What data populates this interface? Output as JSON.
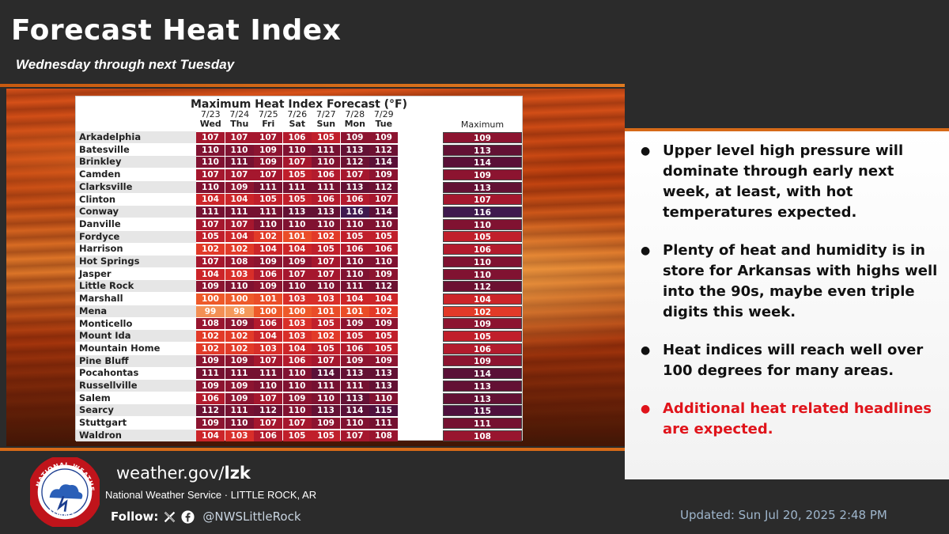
{
  "header": {
    "title": "Forecast Heat Index",
    "subtitle": "Wednesday through next Tuesday"
  },
  "table": {
    "title": "Maximum Heat Index Forecast (°F)",
    "dates": [
      "7/23",
      "7/24",
      "7/25",
      "7/26",
      "7/27",
      "7/28",
      "7/29"
    ],
    "days": [
      "Wed",
      "Thu",
      "Fri",
      "Sat",
      "Sun",
      "Mon",
      "Tue"
    ],
    "max_header": "Maximum",
    "rows": [
      {
        "city": "Arkadelphia",
        "values": [
          107,
          107,
          107,
          106,
          105,
          109,
          109
        ],
        "max": 109
      },
      {
        "city": "Batesville",
        "values": [
          110,
          110,
          109,
          110,
          111,
          113,
          112
        ],
        "max": 113
      },
      {
        "city": "Brinkley",
        "values": [
          110,
          111,
          109,
          107,
          110,
          112,
          114
        ],
        "max": 114
      },
      {
        "city": "Camden",
        "values": [
          107,
          107,
          107,
          105,
          106,
          107,
          109
        ],
        "max": 109
      },
      {
        "city": "Clarksville",
        "values": [
          110,
          109,
          111,
          111,
          111,
          113,
          112
        ],
        "max": 113
      },
      {
        "city": "Clinton",
        "values": [
          104,
          104,
          105,
          105,
          106,
          106,
          107
        ],
        "max": 107
      },
      {
        "city": "Conway",
        "values": [
          111,
          111,
          111,
          113,
          113,
          116,
          114
        ],
        "max": 116
      },
      {
        "city": "Danville",
        "values": [
          107,
          107,
          110,
          110,
          110,
          110,
          110
        ],
        "max": 110
      },
      {
        "city": "Fordyce",
        "values": [
          105,
          104,
          102,
          101,
          102,
          105,
          105
        ],
        "max": 105
      },
      {
        "city": "Harrison",
        "values": [
          102,
          102,
          104,
          104,
          105,
          106,
          106
        ],
        "max": 106
      },
      {
        "city": "Hot Springs",
        "values": [
          107,
          108,
          109,
          109,
          107,
          110,
          110
        ],
        "max": 110
      },
      {
        "city": "Jasper",
        "values": [
          104,
          103,
          106,
          107,
          107,
          110,
          109
        ],
        "max": 110
      },
      {
        "city": "Little Rock",
        "values": [
          109,
          110,
          109,
          110,
          110,
          111,
          112
        ],
        "max": 112
      },
      {
        "city": "Marshall",
        "values": [
          100,
          100,
          101,
          103,
          103,
          104,
          104
        ],
        "max": 104
      },
      {
        "city": "Mena",
        "values": [
          99,
          98,
          100,
          100,
          101,
          101,
          102
        ],
        "max": 102
      },
      {
        "city": "Monticello",
        "values": [
          108,
          109,
          106,
          103,
          105,
          109,
          109
        ],
        "max": 109
      },
      {
        "city": "Mount Ida",
        "values": [
          102,
          102,
          104,
          103,
          102,
          105,
          105
        ],
        "max": 105
      },
      {
        "city": "Mountain Home",
        "values": [
          102,
          102,
          103,
          104,
          105,
          106,
          105
        ],
        "max": 106
      },
      {
        "city": "Pine Bluff",
        "values": [
          109,
          109,
          107,
          106,
          107,
          109,
          109
        ],
        "max": 109
      },
      {
        "city": "Pocahontas",
        "values": [
          111,
          111,
          111,
          110,
          114,
          113,
          113
        ],
        "max": 114
      },
      {
        "city": "Russellville",
        "values": [
          109,
          109,
          110,
          110,
          111,
          111,
          113
        ],
        "max": 113
      },
      {
        "city": "Salem",
        "values": [
          106,
          109,
          107,
          109,
          110,
          113,
          110
        ],
        "max": 113
      },
      {
        "city": "Searcy",
        "values": [
          112,
          111,
          112,
          110,
          113,
          114,
          115
        ],
        "max": 115
      },
      {
        "city": "Stuttgart",
        "values": [
          109,
          110,
          107,
          107,
          109,
          110,
          111
        ],
        "max": 111
      },
      {
        "city": "Waldron",
        "values": [
          104,
          103,
          106,
          105,
          105,
          107,
          108
        ],
        "max": 108
      }
    ]
  },
  "colors": {
    "v98": "#f49a5c",
    "v99": "#f39055",
    "v100": "#ee5a2a",
    "v101": "#ea4d28",
    "v102": "#e23a28",
    "v103": "#d82e29",
    "v104": "#cc2529",
    "v105": "#c01f2b",
    "v106": "#b31b2d",
    "v107": "#a5172e",
    "v108": "#98152f",
    "v109": "#8c1430",
    "v110": "#801231",
    "v111": "#751131",
    "v112": "#6c1132",
    "v113": "#631134",
    "v114": "#5a1037",
    "v115": "#4f103d",
    "v116": "#3f1a4e"
  },
  "bullets": [
    "Upper level high pressure will dominate through early next week, at least, with hot temperatures expected.",
    "Plenty of heat and humidity is in store for Arkansas with highs well into the 90s, maybe even triple digits  this week.",
    "Heat indices will reach well over 100 degrees for many areas.",
    "Additional heat related headlines are expected."
  ],
  "footer": {
    "site_prefix": "weather.gov/",
    "site_office": "lzk",
    "office": "National Weather Service · LITTLE ROCK, AR",
    "follow_label": "Follow:",
    "x_icon": "x-icon",
    "facebook_icon": "facebook-icon",
    "handle": "@NWSLittleRock",
    "updated": "Updated: Sun Jul 20, 2025 2:48 PM",
    "logo_text": "NATIONAL WEATHER SERVICE"
  }
}
